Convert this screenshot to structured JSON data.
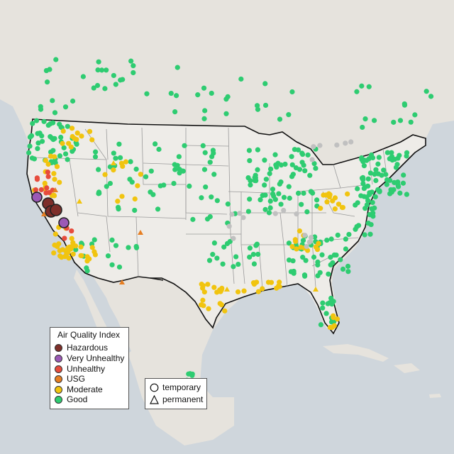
{
  "legend": {
    "title": "Air Quality Index",
    "categories": [
      {
        "label": "Hazardous",
        "color": "#7e2f2a"
      },
      {
        "label": "Very Unhealthy",
        "color": "#9b59b6"
      },
      {
        "label": "Unhealthy",
        "color": "#e74c3c"
      },
      {
        "label": "USG",
        "color": "#e67e22"
      },
      {
        "label": "Moderate",
        "color": "#f1c40f"
      },
      {
        "label": "Good",
        "color": "#2ecc71"
      }
    ]
  },
  "monitor_types": [
    {
      "label": "temporary",
      "shape": "circle-icon"
    },
    {
      "label": "permanent",
      "shape": "triangle-icon"
    }
  ],
  "colors": {
    "ocean": "#cfd6dc",
    "land": "#e8e6e1",
    "land_us": "#eeece8",
    "state_border": "#9a9a9a",
    "country_border": "#111111",
    "no_data": "#c0c0c0"
  }
}
